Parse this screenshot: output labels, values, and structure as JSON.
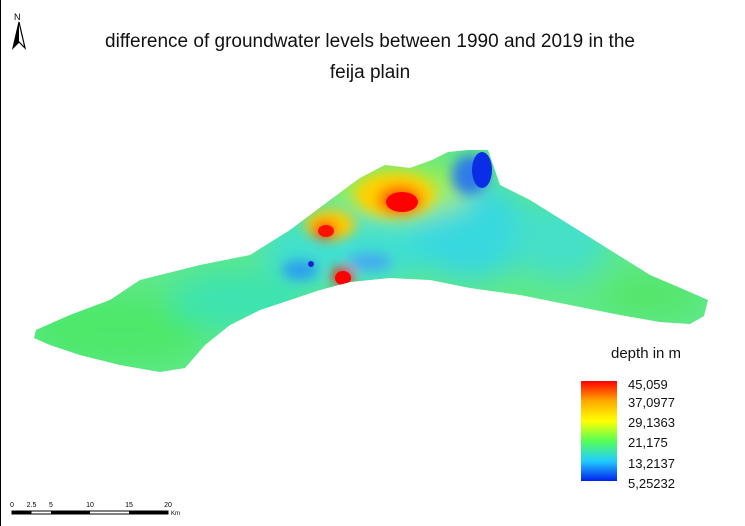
{
  "title_line1": "difference of groundwater levels between 1990 and 2019 in the",
  "title_line2": "feija plain",
  "north_arrow": {
    "label": "N",
    "icon": "north-arrow-icon"
  },
  "legend": {
    "title": "depth in m",
    "labels": [
      "45,059",
      "37,0977",
      "29,1363",
      "21,175",
      "13,2137",
      "5,25232"
    ],
    "colors": [
      "#ff0000",
      "#ffaa00",
      "#ffff00",
      "#55ff55",
      "#22ccff",
      "#0022ee"
    ]
  },
  "scalebar": {
    "ticks": [
      "0",
      "2.5",
      "5",
      "10",
      "15",
      "20"
    ],
    "unit": "Km"
  }
}
